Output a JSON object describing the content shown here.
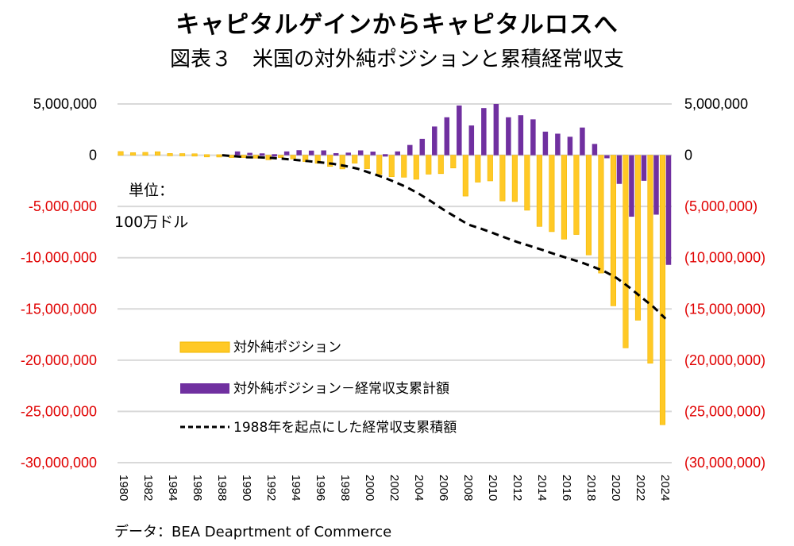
{
  "header": {
    "title": "キャピタルゲインからキャピタルロスへ",
    "subtitle": "図表３　米国の対外純ポジションと累積経常収支"
  },
  "unit_label_line1": "単位：",
  "unit_label_line2": "100万ドル",
  "source": "データ：BEA Deaprtment of Commerce",
  "colors": {
    "net_position": "#FFC926",
    "net_position_border": "#F2B800",
    "net_minus_ca": "#7030A0",
    "cum_ca": "#000000",
    "grid": "#D9D9D9",
    "negative_tick": "#E00000",
    "positive_tick": "#000000"
  },
  "chart_data": {
    "type": "bar",
    "title": "キャピタルゲインからキャピタルロスへ",
    "subtitle": "図表３　米国の対外純ポジションと累積経常収支",
    "xlabel": "",
    "ylabel": "100万ドル",
    "ylim": [
      -30000000,
      5000000
    ],
    "y_ticks_left": [
      "5,000,000",
      "0",
      "-5,000,000",
      "-10,000,000",
      "-15,000,000",
      "-20,000,000",
      "-25,000,000",
      "-30,000,000"
    ],
    "y_ticks_right": [
      "5,000,000",
      "0",
      "(5,000,000)",
      "(10,000,000)",
      "(15,000,000)",
      "(20,000,000)",
      "(25,000,000)",
      "(30,000,000)"
    ],
    "y_tick_values": [
      5000000,
      0,
      -5000000,
      -10000000,
      -15000000,
      -20000000,
      -25000000,
      -30000000
    ],
    "grid": true,
    "legend_position": "bottom-left-inside",
    "x_tick_labels": [
      "1980",
      "1982",
      "1984",
      "1986",
      "1988",
      "1990",
      "1992",
      "1994",
      "1996",
      "1998",
      "2000",
      "2002",
      "2004",
      "2006",
      "2008",
      "2010",
      "2012",
      "2014",
      "2016",
      "2018",
      "2020",
      "2022",
      "2024"
    ],
    "categories": [
      "1980",
      "1981",
      "1982",
      "1983",
      "1984",
      "1985",
      "1986",
      "1987",
      "1988",
      "1989",
      "1990",
      "1991",
      "1992",
      "1993",
      "1994",
      "1995",
      "1996",
      "1997",
      "1998",
      "1999",
      "2000",
      "2001",
      "2002",
      "2003",
      "2004",
      "2005",
      "2006",
      "2007",
      "2008",
      "2009",
      "2010",
      "2011",
      "2012",
      "2013",
      "2014",
      "2015",
      "2016",
      "2017",
      "2018",
      "2019",
      "2020",
      "2021",
      "2022",
      "2023",
      "2024"
    ],
    "series": [
      {
        "name": "対外純ポジション",
        "type": "bar",
        "values": [
          360000,
          250000,
          280000,
          340000,
          170000,
          160000,
          140000,
          60000,
          50000,
          -80000,
          -150000,
          -290000,
          -450000,
          -200000,
          -360000,
          -620000,
          -790000,
          -1100000,
          -1340000,
          -780000,
          -1320000,
          -1880000,
          -2100000,
          -2150000,
          -2350000,
          -1850000,
          -1800000,
          -1250000,
          -3990000,
          -2630000,
          -2510000,
          -4460000,
          -4520000,
          -5370000,
          -6950000,
          -7460000,
          -8190000,
          -7740000,
          -9730000,
          -11500000,
          -14700000,
          -18800000,
          -16100000,
          -20300000,
          -26300000
        ]
      },
      {
        "name": "対外純ポジション－経常収支累計額",
        "type": "bar",
        "values": [
          null,
          null,
          null,
          null,
          null,
          null,
          null,
          null,
          null,
          370000,
          230000,
          180000,
          100000,
          370000,
          490000,
          450000,
          470000,
          200000,
          250000,
          470000,
          350000,
          100000,
          370000,
          1000000,
          1600000,
          2800000,
          3700000,
          4850000,
          2900000,
          4600000,
          5000000,
          3700000,
          3900000,
          3500000,
          2300000,
          2100000,
          1800000,
          2700000,
          1100000,
          -300000,
          -2800000,
          -6000000,
          -2500000,
          -5800000,
          -10700000
        ]
      },
      {
        "name": "1988年を起点にした経常収支累積額",
        "type": "line",
        "style": "dashed",
        "values": [
          null,
          null,
          null,
          null,
          null,
          null,
          null,
          null,
          0,
          -100000,
          -200000,
          -210000,
          -270000,
          -350000,
          -470000,
          -580000,
          -700000,
          -840000,
          -1050000,
          -1320000,
          -1720000,
          -2120000,
          -2600000,
          -3130000,
          -3780000,
          -4530000,
          -5340000,
          -6060000,
          -6780000,
          -7160000,
          -7600000,
          -8050000,
          -8490000,
          -8860000,
          -9240000,
          -9650000,
          -10030000,
          -10390000,
          -10830000,
          -11310000,
          -11960000,
          -12840000,
          -13830000,
          -14780000,
          -15950000
        ]
      }
    ]
  }
}
